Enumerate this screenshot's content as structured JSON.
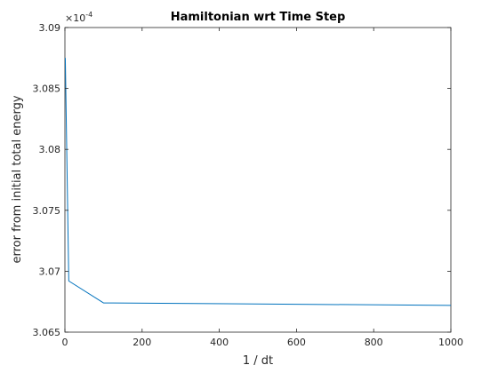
{
  "chart_data": {
    "type": "line",
    "title": "Hamiltonian wrt Time Step",
    "xlabel": "1 / dt",
    "ylabel": "error from initial total energy",
    "exponent_base": "×10",
    "exponent_power": "-4",
    "xlim": [
      0,
      1000
    ],
    "ylim": [
      3.065,
      3.09
    ],
    "xticks": [
      0,
      200,
      400,
      600,
      800,
      1000
    ],
    "xtick_labels": [
      "0",
      "200",
      "400",
      "600",
      "800",
      "1000"
    ],
    "yticks": [
      3.065,
      3.07,
      3.075,
      3.08,
      3.085,
      3.09
    ],
    "ytick_labels": [
      "3.065",
      "3.07",
      "3.075",
      "3.08",
      "3.085",
      "3.09"
    ],
    "grid": false,
    "series": [
      {
        "color": "#0072BD",
        "x": [
          1,
          10,
          100,
          1000
        ],
        "y": [
          3.0875,
          3.0692,
          3.0674,
          3.0672
        ]
      }
    ]
  }
}
